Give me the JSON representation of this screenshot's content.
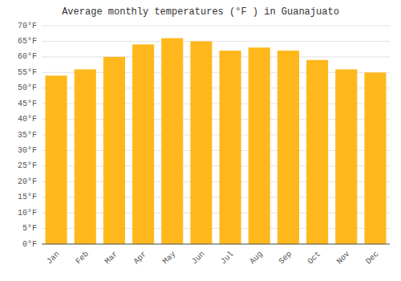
{
  "chart_data": {
    "type": "bar",
    "title": "Average monthly temperatures (°F ) in Guanajuato",
    "categories": [
      "Jan",
      "Feb",
      "Mar",
      "Apr",
      "May",
      "Jun",
      "Jul",
      "Aug",
      "Sep",
      "Oct",
      "Nov",
      "Dec"
    ],
    "values": [
      54,
      56,
      60,
      64,
      66,
      65,
      62,
      63,
      62,
      59,
      56,
      55
    ],
    "color": "#FFB81C",
    "ylim": [
      0,
      70
    ],
    "yticks": [
      {
        "value": 0,
        "label": "0°F"
      },
      {
        "value": 5,
        "label": "5°F"
      },
      {
        "value": 10,
        "label": "10°F"
      },
      {
        "value": 15,
        "label": "15°F"
      },
      {
        "value": 20,
        "label": "20°F"
      },
      {
        "value": 25,
        "label": "25°F"
      },
      {
        "value": 30,
        "label": "30°F"
      },
      {
        "value": 35,
        "label": "35°F"
      },
      {
        "value": 40,
        "label": "40°F"
      },
      {
        "value": 45,
        "label": "45°F"
      },
      {
        "value": 50,
        "label": "50°F"
      },
      {
        "value": 55,
        "label": "55°F"
      },
      {
        "value": 60,
        "label": "60°F"
      },
      {
        "value": 65,
        "label": "65°F"
      },
      {
        "value": 70,
        "label": "70°F"
      }
    ],
    "grid": true
  }
}
